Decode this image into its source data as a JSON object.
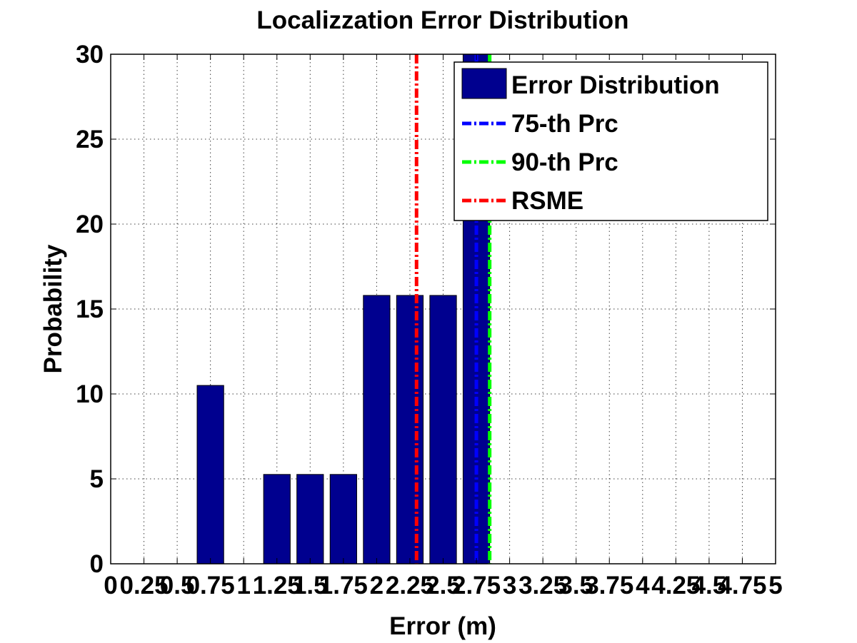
{
  "chart_data": {
    "type": "bar",
    "title": "Localizzation Error Distribution",
    "xlabel": "Error (m)",
    "ylabel": "Probability",
    "xlim": [
      0,
      5
    ],
    "ylim": [
      0,
      30
    ],
    "x_ticks": [
      0,
      0.25,
      0.5,
      0.75,
      1,
      1.25,
      1.5,
      1.75,
      2,
      2.25,
      2.5,
      2.75,
      3,
      3.25,
      3.5,
      3.75,
      4,
      4.25,
      4.5,
      4.75,
      5
    ],
    "x_tick_labels": [
      "0",
      "0.25",
      "0.5",
      "0.75",
      "1",
      "1.25",
      "1.5",
      "1.75",
      "2",
      "2.25",
      "2.5",
      "2.75",
      "3",
      "3.25",
      "3.5",
      "3.75",
      "4",
      "4.25",
      "4.5",
      "4.75",
      "5"
    ],
    "y_ticks": [
      0,
      5,
      10,
      15,
      20,
      25,
      30
    ],
    "y_tick_labels": [
      "0",
      "5",
      "10",
      "15",
      "20",
      "25",
      "30"
    ],
    "grid": true,
    "legend_position": "top-right",
    "bar_width": 0.2,
    "series": [
      {
        "name": "Error Distribution",
        "color": "#00008f",
        "x": [
          0.75,
          1.25,
          1.5,
          1.75,
          2,
          2.25,
          2.5,
          2.75
        ],
        "values": [
          10.5,
          5.26,
          5.26,
          5.26,
          15.8,
          15.8,
          15.8,
          31.6
        ]
      }
    ],
    "lines": [
      {
        "name": "75-th Prc",
        "x": 2.75,
        "color": "#0000ff"
      },
      {
        "name": "90-th Prc",
        "x": 2.85,
        "color": "#00ff00"
      },
      {
        "name": "RSME",
        "x": 2.3,
        "color": "#ff0000"
      }
    ]
  }
}
